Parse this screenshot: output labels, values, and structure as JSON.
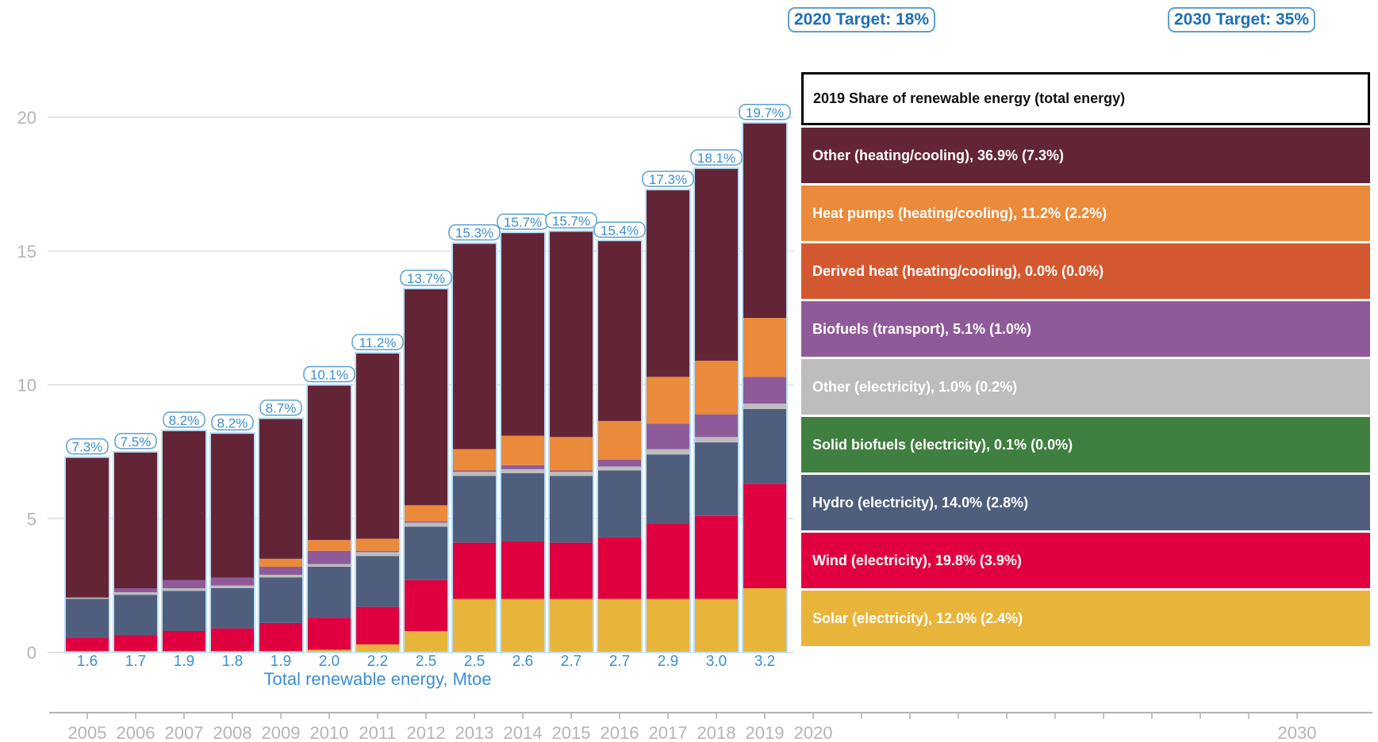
{
  "chart_data": {
    "type": "bar",
    "stacked": true,
    "categories": [
      "2005",
      "2006",
      "2007",
      "2008",
      "2009",
      "2010",
      "2011",
      "2012",
      "2013",
      "2014",
      "2015",
      "2016",
      "2017",
      "2018",
      "2019"
    ],
    "x_axis_years": [
      "2005",
      "2006",
      "2007",
      "2008",
      "2009",
      "2010",
      "2011",
      "2012",
      "2013",
      "2014",
      "2015",
      "2016",
      "2017",
      "2018",
      "2019",
      "2020",
      "2030"
    ],
    "ylim": [
      0,
      20
    ],
    "yticks": [
      "0",
      "5",
      "10",
      "15",
      "20"
    ],
    "grid": true,
    "xlabel": "Total renewable energy, Mtoe",
    "share_labels": [
      "7.3%",
      "7.5%",
      "8.2%",
      "8.2%",
      "8.7%",
      "10.1%",
      "11.2%",
      "13.7%",
      "15.3%",
      "15.7%",
      "15.7%",
      "15.4%",
      "17.3%",
      "18.1%",
      "19.7%"
    ],
    "total_mtoe": [
      "1.6",
      "1.7",
      "1.9",
      "1.8",
      "1.9",
      "2.0",
      "2.2",
      "2.5",
      "2.5",
      "2.6",
      "2.7",
      "2.7",
      "2.9",
      "3.0",
      "3.2"
    ],
    "series": [
      {
        "name": "Solar (electricity), 12.0% (2.4%)",
        "color": "#e8b53a",
        "values": [
          0.05,
          0.05,
          0.05,
          0.05,
          0.05,
          0.1,
          0.3,
          0.8,
          2.0,
          2.0,
          2.0,
          2.0,
          2.0,
          2.0,
          2.4
        ]
      },
      {
        "name": "Wind (electricity), 19.8% (3.9%)",
        "color": "#e0003f",
        "values": [
          0.5,
          0.6,
          0.75,
          0.85,
          1.05,
          1.2,
          1.4,
          1.9,
          2.1,
          2.15,
          2.1,
          2.3,
          2.8,
          3.1,
          3.9
        ]
      },
      {
        "name": "Hydro (electricity), 14.0% (2.8%)",
        "color": "#4f5e7d",
        "values": [
          1.45,
          1.5,
          1.5,
          1.5,
          1.7,
          1.9,
          1.9,
          2.0,
          2.5,
          2.55,
          2.5,
          2.5,
          2.6,
          2.75,
          2.8
        ]
      },
      {
        "name": "Solid biofuels (electricity),  0.1% (0.0%)",
        "color": "#3f7f3f",
        "values": [
          0,
          0,
          0,
          0,
          0,
          0,
          0,
          0,
          0,
          0,
          0,
          0,
          0,
          0,
          0
        ]
      },
      {
        "name": "Other (electricity),  1.0% (0.2%)",
        "color": "#bdbdbd",
        "values": [
          0.05,
          0.1,
          0.1,
          0.1,
          0.1,
          0.1,
          0.15,
          0.15,
          0.15,
          0.15,
          0.15,
          0.15,
          0.2,
          0.2,
          0.2
        ]
      },
      {
        "name": "Biofuels (transport),  5.1% (1.0%)",
        "color": "#8f5a9a",
        "values": [
          0,
          0.15,
          0.3,
          0.3,
          0.3,
          0.5,
          0.05,
          0.05,
          0.05,
          0.15,
          0.05,
          0.25,
          0.95,
          0.85,
          1.0
        ]
      },
      {
        "name": "Derived heat (heating/cooling),  0.0% (0.0%)",
        "color": "#d4582f",
        "values": [
          0,
          0,
          0,
          0,
          0,
          0,
          0,
          0,
          0,
          0,
          0,
          0,
          0,
          0,
          0
        ]
      },
      {
        "name": "Heat pumps (heating/cooling), 11.2% (2.2%)",
        "color": "#ea8a3a",
        "values": [
          0,
          0,
          0,
          0,
          0.3,
          0.4,
          0.45,
          0.6,
          0.8,
          1.1,
          1.25,
          1.45,
          1.75,
          2.0,
          2.2
        ]
      },
      {
        "name": "Other (heating/cooling), 36.9% (7.3%)",
        "color": "#632536",
        "values": [
          5.25,
          5.1,
          5.6,
          5.4,
          5.25,
          5.8,
          6.95,
          8.1,
          7.7,
          7.6,
          7.7,
          6.75,
          7.0,
          7.2,
          7.3
        ]
      }
    ],
    "legend_title": "2019 Share of renewable energy (total energy)",
    "legend_placement": "right",
    "annotations": [
      "2020 Target: 18%",
      "2030 Target: 35%"
    ]
  }
}
